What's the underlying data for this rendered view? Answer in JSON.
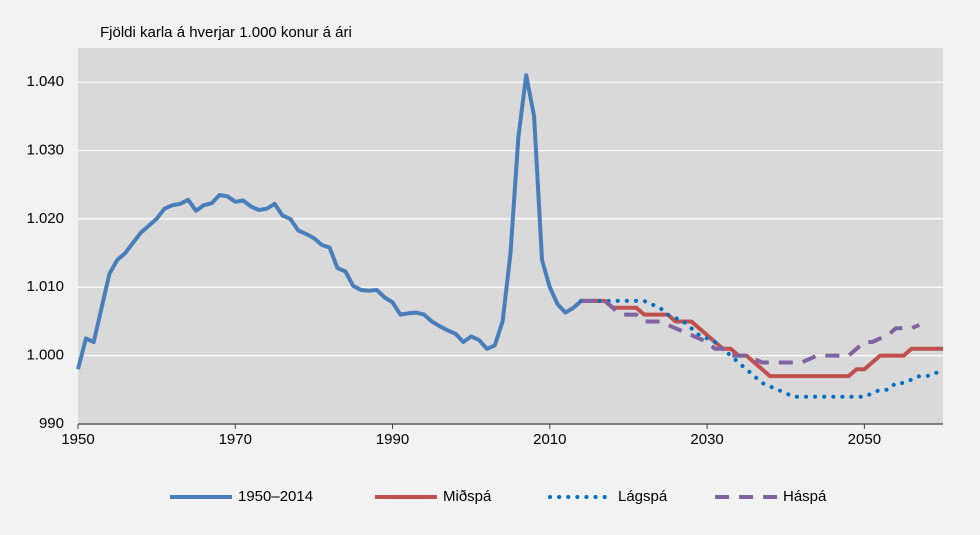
{
  "chart_data": {
    "type": "line",
    "title": "Fjöldi karla á hverjar 1.000 konur á ári",
    "xlim": [
      1950,
      2060
    ],
    "xticks": [
      1950,
      1970,
      1990,
      2010,
      2030,
      2050
    ],
    "ylim": [
      990,
      1045
    ],
    "yticks": [
      990,
      {
        "value": 1000,
        "label": "1.000"
      },
      {
        "value": 1010,
        "label": "1.010"
      },
      {
        "value": 1020,
        "label": "1.020"
      },
      {
        "value": 1030,
        "label": "1.030"
      },
      {
        "value": 1040,
        "label": "1.040"
      }
    ],
    "grid": true,
    "legend": "bottom",
    "series": [
      {
        "name": "1950–2014",
        "color": "#4a7ebb",
        "style": "solid",
        "x": [
          1950,
          1951,
          1952,
          1953,
          1954,
          1955,
          1956,
          1957,
          1958,
          1959,
          1960,
          1961,
          1962,
          1963,
          1964,
          1965,
          1966,
          1967,
          1968,
          1969,
          1970,
          1971,
          1972,
          1973,
          1974,
          1975,
          1976,
          1977,
          1978,
          1979,
          1980,
          1981,
          1982,
          1983,
          1984,
          1985,
          1986,
          1987,
          1988,
          1989,
          1990,
          1991,
          1992,
          1993,
          1994,
          1995,
          1996,
          1997,
          1998,
          1999,
          2000,
          2001,
          2002,
          2003,
          2004,
          2005,
          2006,
          2007,
          2008,
          2009,
          2010,
          2011,
          2012,
          2013,
          2014
        ],
        "values": [
          998,
          1002.5,
          1002,
          1007,
          1012,
          1014,
          1015,
          1016.5,
          1018,
          1019,
          1020,
          1021.5,
          1022,
          1022.2,
          1022.8,
          1021.2,
          1022,
          1022.3,
          1023.5,
          1023.3,
          1022.5,
          1022.7,
          1021.8,
          1021.3,
          1021.5,
          1022.2,
          1020.5,
          1020,
          1018.3,
          1017.8,
          1017.2,
          1016.2,
          1015.8,
          1012.8,
          1012.3,
          1010.2,
          1009.6,
          1009.5,
          1009.6,
          1008.5,
          1007.8,
          1006,
          1006.2,
          1006.3,
          1006,
          1005,
          1004.3,
          1003.7,
          1003.2,
          1002,
          1002.8,
          1002.3,
          1001,
          1001.5,
          1005,
          1015,
          1032,
          1041,
          1035,
          1014,
          1010,
          1007.5,
          1006.3,
          1007,
          1008
        ]
      },
      {
        "name": "Miðspá",
        "color": "#c0504d",
        "style": "solid",
        "x": [
          2014,
          2015,
          2016,
          2017,
          2018,
          2019,
          2020,
          2021,
          2022,
          2023,
          2024,
          2025,
          2026,
          2027,
          2028,
          2029,
          2030,
          2031,
          2032,
          2033,
          2034,
          2035,
          2036,
          2037,
          2038,
          2039,
          2040,
          2041,
          2042,
          2043,
          2044,
          2045,
          2046,
          2047,
          2048,
          2049,
          2050,
          2051,
          2052,
          2053,
          2054,
          2055,
          2056,
          2057,
          2058,
          2059,
          2060
        ],
        "values": [
          1008,
          1008,
          1008,
          1008,
          1007,
          1007,
          1007,
          1007,
          1006,
          1006,
          1006,
          1006,
          1005,
          1005,
          1005,
          1004,
          1003,
          1002,
          1001,
          1001,
          1000,
          1000,
          999,
          998,
          997,
          997,
          997,
          997,
          997,
          997,
          997,
          997,
          997,
          997,
          997,
          998,
          998,
          999,
          1000,
          1000,
          1000,
          1000,
          1001,
          1001,
          1001,
          1001,
          1001
        ]
      },
      {
        "name": "Lágspá",
        "color": "#0070c0",
        "style": "dotted",
        "x": [
          2014,
          2015,
          2016,
          2017,
          2018,
          2019,
          2020,
          2021,
          2022,
          2023,
          2024,
          2025,
          2026,
          2027,
          2028,
          2029,
          2030,
          2031,
          2032,
          2033,
          2034,
          2035,
          2036,
          2037,
          2038,
          2039,
          2040,
          2041,
          2042,
          2043,
          2044,
          2045,
          2046,
          2047,
          2048,
          2049,
          2050,
          2051,
          2052,
          2053,
          2054,
          2055,
          2056,
          2057,
          2058,
          2059,
          2060
        ],
        "values": [
          1008,
          1008,
          1008,
          1008,
          1008,
          1008,
          1008,
          1008,
          1008,
          1007.5,
          1007,
          1006,
          1005.5,
          1005,
          1004,
          1003,
          1002.5,
          1002,
          1001,
          1000,
          999,
          998,
          997,
          996,
          995.5,
          995,
          994.5,
          994,
          994,
          994,
          994,
          994,
          994,
          994,
          994,
          994,
          994,
          994.5,
          995,
          995,
          996,
          996,
          996.5,
          997,
          997,
          997.5,
          997.5
        ]
      },
      {
        "name": "Háspá",
        "color": "#8064a2",
        "style": "dashed",
        "x": [
          2014,
          2015,
          2016,
          2017,
          2018,
          2019,
          2020,
          2021,
          2022,
          2023,
          2024,
          2025,
          2026,
          2027,
          2028,
          2029,
          2030,
          2031,
          2032,
          2033,
          2034,
          2035,
          2036,
          2037,
          2038,
          2039,
          2040,
          2041,
          2042,
          2043,
          2044,
          2045,
          2046,
          2047,
          2048,
          2049,
          2050,
          2051,
          2052,
          2053,
          2054,
          2055,
          2056,
          2057
        ],
        "values": [
          1008,
          1008,
          1008,
          1008,
          1007,
          1006,
          1006,
          1006,
          1005,
          1005,
          1005,
          1004.5,
          1004,
          1003.5,
          1003,
          1002.5,
          1002,
          1001,
          1001,
          1000,
          1000,
          1000,
          999.5,
          999,
          999,
          999,
          999,
          999,
          999,
          999.5,
          1000,
          1000,
          1000,
          1000,
          1000,
          1001,
          1002,
          1002,
          1002.5,
          1003,
          1004,
          1004,
          1004,
          1004.5
        ]
      }
    ]
  }
}
